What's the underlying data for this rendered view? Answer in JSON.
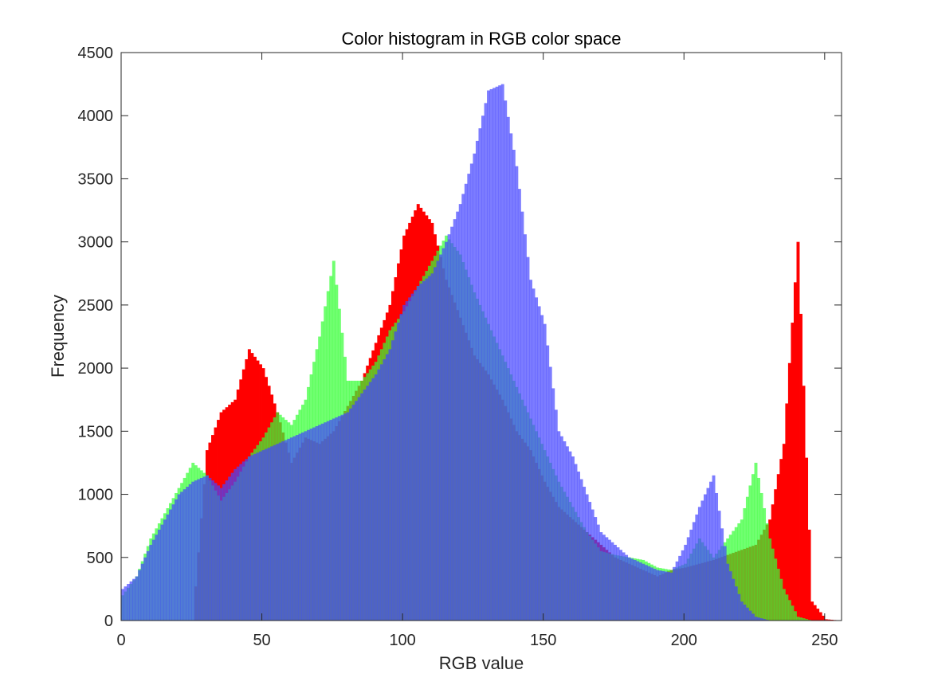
{
  "chart_data": {
    "type": "bar",
    "title": "Color histogram in RGB color space",
    "xlabel": "RGB value",
    "ylabel": "Frequency",
    "xlim": [
      0,
      256
    ],
    "ylim": [
      0,
      4500
    ],
    "xticks": [
      0,
      50,
      100,
      150,
      200,
      250
    ],
    "yticks": [
      0,
      500,
      1000,
      1500,
      2000,
      2500,
      3000,
      3500,
      4000,
      4500
    ],
    "grid": false,
    "bin_width": 1,
    "x": [
      0,
      5,
      10,
      15,
      20,
      25,
      30,
      35,
      40,
      45,
      50,
      55,
      60,
      65,
      70,
      75,
      80,
      85,
      90,
      95,
      100,
      105,
      110,
      115,
      120,
      125,
      130,
      135,
      140,
      145,
      150,
      155,
      160,
      165,
      170,
      175,
      180,
      185,
      190,
      195,
      200,
      205,
      210,
      215,
      220,
      225,
      230,
      235,
      240,
      245,
      250,
      255
    ],
    "series": [
      {
        "color": "#ff0000",
        "values": [
          0,
          0,
          0,
          0,
          0,
          0,
          1350,
          1650,
          1750,
          2150,
          2000,
          1650,
          1250,
          1450,
          1400,
          1500,
          1700,
          1900,
          2200,
          2500,
          3050,
          3300,
          3150,
          2700,
          2400,
          2100,
          1950,
          1750,
          1500,
          1350,
          1100,
          900,
          800,
          700,
          600,
          500,
          450,
          400,
          350,
          400,
          420,
          450,
          480,
          520,
          560,
          600,
          800,
          1400,
          3000,
          150,
          10,
          0
        ]
      },
      {
        "color": "#33ff33",
        "values": [
          200,
          350,
          650,
          850,
          1050,
          1250,
          1150,
          950,
          1100,
          1300,
          1450,
          1650,
          1550,
          1750,
          2250,
          2850,
          1900,
          1900,
          2050,
          2300,
          2450,
          2650,
          2850,
          3050,
          2900,
          2600,
          2350,
          2100,
          1850,
          1600,
          1350,
          1100,
          900,
          700,
          550,
          520,
          500,
          480,
          420,
          400,
          450,
          650,
          500,
          650,
          800,
          1250,
          650,
          250,
          30,
          0,
          0,
          0
        ]
      },
      {
        "color": "#4444ff",
        "values": [
          250,
          350,
          600,
          800,
          1000,
          1100,
          1150,
          1050,
          1200,
          1300,
          1350,
          1400,
          1450,
          1500,
          1550,
          1600,
          1650,
          1800,
          1950,
          2150,
          2500,
          2650,
          2750,
          3000,
          3300,
          3700,
          4200,
          4250,
          3600,
          2700,
          2350,
          1500,
          1300,
          1000,
          700,
          600,
          500,
          450,
          400,
          380,
          600,
          900,
          1150,
          450,
          150,
          30,
          0,
          0,
          0,
          0,
          0,
          0
        ]
      }
    ]
  }
}
